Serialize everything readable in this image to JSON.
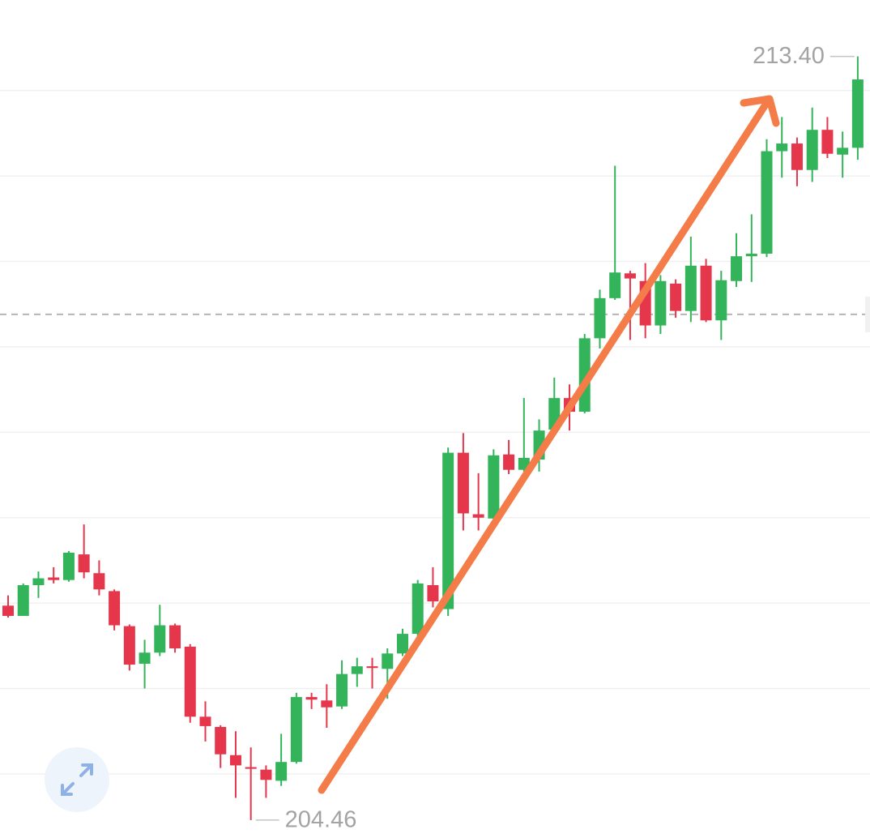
{
  "chart_data": {
    "type": "candlestick",
    "up_color": "#33b35a",
    "down_color": "#e5364b",
    "open": [
      206.97,
      206.85,
      207.21,
      207.3,
      207.27,
      207.57,
      207.35,
      207.14,
      206.73,
      206.29,
      206.42,
      206.74,
      206.49,
      205.67,
      205.55,
      205.22,
      205.08,
      205.05,
      204.92,
      205.14,
      205.9,
      205.86,
      205.79,
      206.17,
      206.26,
      206.23,
      206.41,
      206.64,
      207.21,
      206.93,
      208.76,
      208.04,
      207.99,
      208.74,
      208.56,
      208.68,
      209.03,
      209.4,
      209.24,
      210.1,
      210.57,
      210.86,
      210.77,
      210.25,
      210.74,
      210.42,
      210.95,
      210.31,
      210.77,
      211.06,
      211.09,
      212.29,
      212.38,
      212.07,
      212.54,
      212.25,
      212.33
    ],
    "high": [
      207.09,
      207.23,
      207.37,
      207.42,
      207.61,
      207.92,
      207.5,
      207.16,
      206.75,
      206.57,
      206.98,
      206.76,
      206.52,
      205.85,
      205.57,
      205.5,
      205.31,
      205.1,
      205.47,
      205.95,
      205.95,
      206.05,
      206.33,
      206.36,
      206.36,
      206.47,
      206.7,
      207.27,
      207.42,
      208.82,
      208.99,
      208.52,
      208.8,
      208.91,
      209.4,
      209.15,
      209.64,
      209.56,
      210.15,
      210.67,
      212.12,
      210.89,
      210.98,
      210.84,
      210.79,
      211.29,
      211.03,
      210.89,
      211.33,
      211.55,
      212.43,
      212.69,
      212.45,
      212.8,
      212.69,
      212.52,
      213.4
    ],
    "low": [
      206.83,
      206.85,
      207.06,
      207.23,
      207.25,
      207.29,
      207.09,
      206.68,
      206.21,
      206.0,
      206.38,
      206.42,
      205.6,
      205.38,
      205.07,
      204.72,
      204.46,
      204.72,
      204.86,
      205.12,
      205.76,
      205.54,
      205.76,
      206.02,
      206.0,
      205.88,
      206.38,
      206.61,
      206.95,
      206.85,
      207.85,
      207.85,
      207.97,
      208.51,
      208.54,
      208.54,
      208.99,
      209.02,
      209.22,
      209.98,
      210.55,
      210.08,
      210.1,
      210.15,
      210.34,
      210.29,
      210.29,
      210.08,
      210.7,
      210.76,
      211.05,
      211.98,
      211.88,
      211.93,
      212.21,
      211.98,
      212.19
    ],
    "close": [
      206.85,
      207.21,
      207.29,
      207.27,
      207.59,
      207.36,
      207.16,
      206.74,
      206.28,
      206.42,
      206.74,
      206.47,
      205.67,
      205.56,
      205.23,
      205.1,
      205.06,
      204.93,
      205.14,
      205.9,
      205.87,
      205.78,
      206.17,
      206.26,
      206.24,
      206.41,
      206.64,
      207.23,
      207.02,
      208.76,
      208.05,
      208.0,
      208.73,
      208.56,
      208.7,
      209.02,
      209.4,
      209.24,
      210.1,
      210.57,
      210.87,
      210.8,
      210.25,
      210.77,
      210.42,
      210.95,
      210.31,
      210.78,
      211.06,
      211.09,
      212.29,
      212.38,
      212.07,
      212.54,
      212.26,
      212.33,
      213.13
    ],
    "ylim": [
      204.25,
      214.06
    ],
    "yticks": [
      205,
      206,
      207,
      208,
      209,
      210,
      211,
      212,
      213
    ],
    "grid": true,
    "tick_labels": false,
    "reference_line": 210.38,
    "annotations": [
      {
        "text": "213.40",
        "value": 213.4,
        "candle": 56,
        "side": "left"
      },
      {
        "text": "204.46",
        "value": 204.46,
        "candle": 16,
        "side": "right"
      }
    ]
  }
}
